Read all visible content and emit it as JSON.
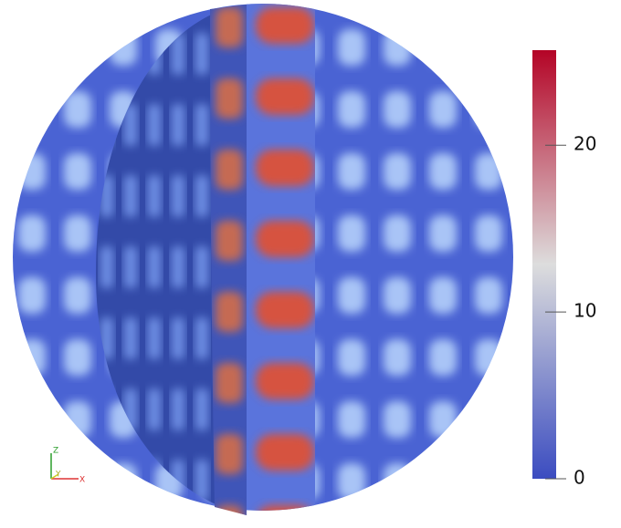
{
  "colorbar": {
    "range": [
      0,
      25.7
    ],
    "ticks": [
      0,
      10,
      20
    ],
    "colors": [
      "#3b4cc0",
      "#dddddd",
      "#b40426"
    ]
  },
  "axes_triad": {
    "z": "Z",
    "y": "Y",
    "x": "X"
  }
}
